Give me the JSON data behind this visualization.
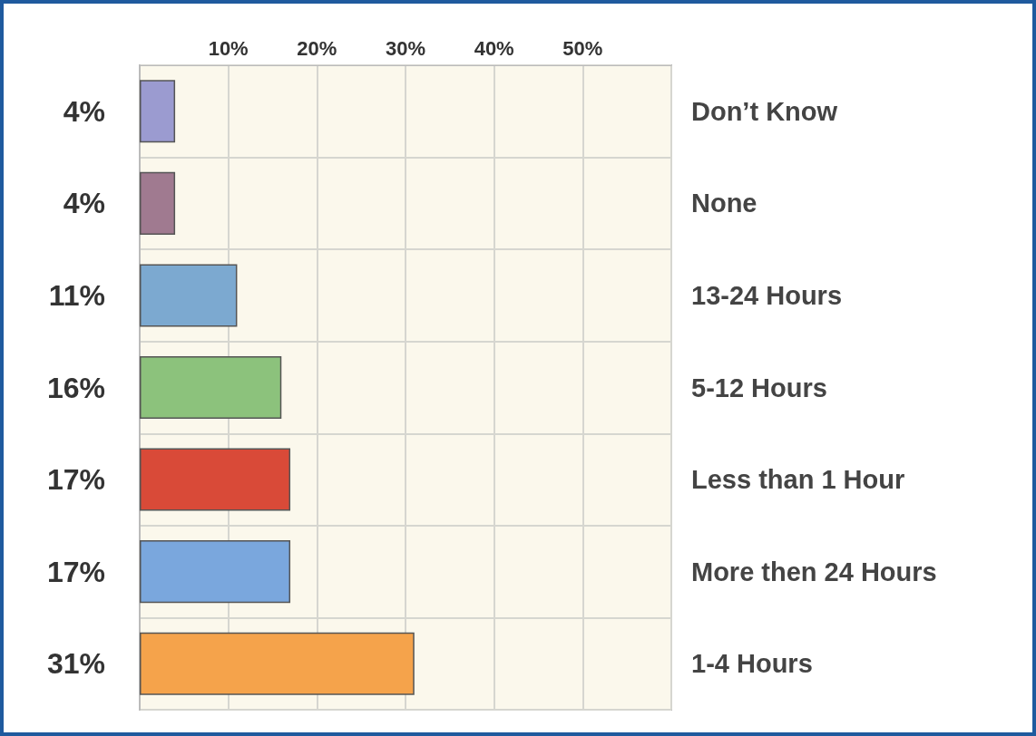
{
  "chart_data": {
    "type": "bar",
    "orientation": "horizontal",
    "categories": [
      "Don’t Know",
      "None",
      "13-24 Hours",
      "5-12 Hours",
      "Less than 1 Hour",
      "More then 24 Hours",
      "1-4 Hours"
    ],
    "values": [
      4,
      4,
      11,
      16,
      17,
      17,
      31
    ],
    "colors": [
      "#9b9bd0",
      "#a07a90",
      "#7ca9d0",
      "#8cc27c",
      "#d94a38",
      "#7aa7dd",
      "#f5a34b"
    ],
    "value_labels": [
      "4%",
      "4%",
      "11%",
      "16%",
      "17%",
      "17%",
      "31%"
    ],
    "xlim": [
      0,
      60
    ],
    "xticks": [
      {
        "value": 0,
        "label": null
      },
      {
        "value": 10,
        "label": "10%"
      },
      {
        "value": 20,
        "label": "20%"
      },
      {
        "value": 30,
        "label": "30%"
      },
      {
        "value": 40,
        "label": "40%"
      },
      {
        "value": 50,
        "label": "50%"
      },
      {
        "value": 60,
        "label": null
      }
    ],
    "grid": true
  }
}
